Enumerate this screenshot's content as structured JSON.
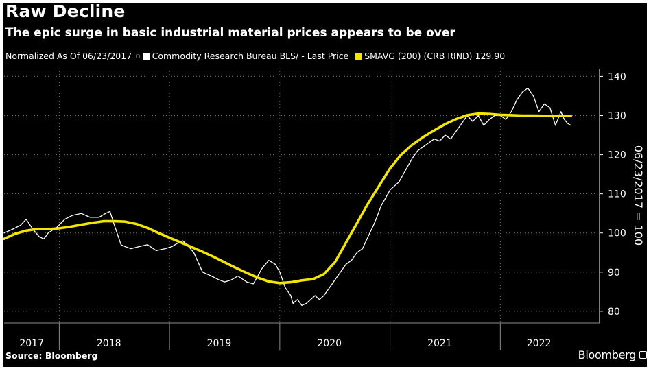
{
  "header": {
    "title": "Raw Decline",
    "subtitle": "The epic surge in basic industrial material prices appears to be over"
  },
  "legend": {
    "normalized": "Normalized As Of 06/23/2017",
    "items": [
      {
        "label": "Commodity Research Bureau BLS/ - Last Price",
        "color": "#ffffff"
      },
      {
        "label": "SMAVG (200) (CRB RIND) 129.90",
        "color": "#f2e600"
      }
    ]
  },
  "footer": {
    "source": "Source: Bloomberg",
    "brand": "Bloomberg"
  },
  "chart_data": {
    "type": "line",
    "ylabel": "06/23/2017 = 100",
    "ylim": [
      77,
      142
    ],
    "yticks": [
      80,
      90,
      100,
      110,
      120,
      130,
      140
    ],
    "xlim": [
      2017.0,
      2022.4
    ],
    "x_labels": [
      "2017",
      "2018",
      "2019",
      "2020",
      "2021",
      "2022"
    ],
    "x_label_positions": [
      2017.25,
      2017.95,
      2018.95,
      2019.95,
      2020.95,
      2021.85
    ],
    "year_dividers": [
      2017.5,
      2018.5,
      2019.5,
      2020.5,
      2021.5
    ],
    "grid": true,
    "series": [
      {
        "name": "Commodity Research Bureau BLS/ - Last Price",
        "color": "#ffffff",
        "x": [
          2017.0,
          2017.08,
          2017.15,
          2017.2,
          2017.26,
          2017.32,
          2017.36,
          2017.4,
          2017.48,
          2017.55,
          2017.62,
          2017.7,
          2017.78,
          2017.86,
          2017.92,
          2017.96,
          2018.0,
          2018.03,
          2018.06,
          2018.1,
          2018.15,
          2018.22,
          2018.3,
          2018.38,
          2018.46,
          2018.52,
          2018.58,
          2018.62,
          2018.66,
          2018.72,
          2018.8,
          2018.88,
          2018.95,
          2019.0,
          2019.06,
          2019.12,
          2019.2,
          2019.26,
          2019.3,
          2019.34,
          2019.4,
          2019.46,
          2019.5,
          2019.55,
          2019.6,
          2019.62,
          2019.66,
          2019.7,
          2019.74,
          2019.78,
          2019.82,
          2019.86,
          2019.9,
          2019.95,
          2020.0,
          2020.05,
          2020.1,
          2020.15,
          2020.2,
          2020.25,
          2020.3,
          2020.35,
          2020.38,
          2020.42,
          2020.46,
          2020.5,
          2020.54,
          2020.58,
          2020.62,
          2020.66,
          2020.7,
          2020.75,
          2020.8,
          2020.85,
          2020.9,
          2020.95,
          2021.0,
          2021.05,
          2021.1,
          2021.15,
          2021.2,
          2021.25,
          2021.3,
          2021.35,
          2021.4,
          2021.45,
          2021.5,
          2021.55,
          2021.6,
          2021.65,
          2021.7,
          2021.75,
          2021.8,
          2021.85,
          2021.9,
          2021.95,
          2022.0,
          2022.05,
          2022.08,
          2022.11,
          2022.14
        ],
        "values": [
          100,
          101,
          102,
          103.5,
          101,
          99,
          98.5,
          100,
          101.5,
          103.5,
          104.5,
          105,
          104,
          104,
          105,
          105.5,
          102,
          99.5,
          97,
          96.5,
          96,
          96.5,
          97,
          95.5,
          96,
          96.5,
          97.5,
          98,
          97,
          95,
          90,
          89,
          88,
          87.5,
          88,
          89,
          87.5,
          87,
          89,
          91,
          93,
          92,
          90,
          86,
          84,
          82,
          83,
          81.5,
          82,
          83,
          84,
          83,
          84,
          86,
          88,
          90,
          92,
          93,
          95,
          96,
          99,
          102,
          104,
          107,
          109,
          111,
          112,
          113,
          115,
          117,
          119,
          121,
          122,
          123,
          124,
          123.5,
          125,
          124,
          126,
          128,
          130,
          128.5,
          130,
          127.5,
          129,
          130,
          130,
          129,
          131,
          134,
          136,
          137,
          135,
          131,
          133,
          132,
          127.5,
          131,
          129,
          128,
          127.5
        ]
      },
      {
        "name": "SMAVG (200) (CRB RIND) 129.90",
        "color": "#f2e600",
        "x": [
          2017.0,
          2017.1,
          2017.2,
          2017.3,
          2017.4,
          2017.5,
          2017.6,
          2017.7,
          2017.8,
          2017.9,
          2018.0,
          2018.1,
          2018.2,
          2018.3,
          2018.4,
          2018.5,
          2018.6,
          2018.7,
          2018.8,
          2018.9,
          2019.0,
          2019.1,
          2019.2,
          2019.3,
          2019.4,
          2019.5,
          2019.6,
          2019.7,
          2019.8,
          2019.9,
          2020.0,
          2020.06,
          2020.12,
          2020.18,
          2020.24,
          2020.3,
          2020.4,
          2020.5,
          2020.6,
          2020.7,
          2020.8,
          2020.9,
          2021.0,
          2021.1,
          2021.2,
          2021.3,
          2021.4,
          2021.5,
          2021.6,
          2021.7,
          2021.8,
          2021.9,
          2022.0,
          2022.1,
          2022.14
        ],
        "values": [
          98.5,
          99.8,
          100.6,
          101,
          101,
          101.2,
          101.6,
          102.1,
          102.6,
          103,
          103,
          102.9,
          102.3,
          101.3,
          100,
          98.8,
          97.6,
          96.4,
          95.2,
          93.9,
          92.5,
          91.1,
          89.8,
          88.6,
          87.6,
          87.2,
          87.4,
          87.9,
          88.2,
          89.5,
          92.5,
          95.5,
          98.5,
          101.5,
          104.5,
          107.5,
          112,
          116.5,
          120,
          122.5,
          124.5,
          126.2,
          127.8,
          129.1,
          130.1,
          130.5,
          130.4,
          130.2,
          130.1,
          130.0,
          130.0,
          129.95,
          129.9,
          129.9,
          129.9
        ]
      }
    ]
  }
}
